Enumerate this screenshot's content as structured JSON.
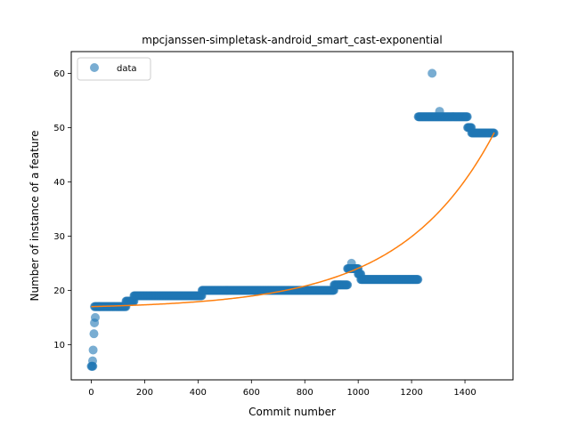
{
  "chart_data": {
    "type": "scatter",
    "title": "mpcjanssen-simpletask-android_smart_cast-exponential",
    "xlabel": "Commit number",
    "ylabel": "Number of instance of a feature",
    "xlim": [
      -75,
      1580
    ],
    "ylim": [
      3.5,
      64
    ],
    "xticks": [
      0,
      200,
      400,
      600,
      800,
      1000,
      1200,
      1400
    ],
    "yticks": [
      10,
      20,
      30,
      40,
      50,
      60
    ],
    "grid": false,
    "legend": {
      "placement": "upper-left",
      "entries": [
        "data"
      ]
    },
    "colors": {
      "data": "#1f77b4",
      "fit": "#ff7f0e"
    },
    "series": [
      {
        "name": "data",
        "kind": "scatter",
        "segments": [
          {
            "x0": 0,
            "x1": 6,
            "y": 6
          },
          {
            "x0": 12,
            "x1": 30,
            "y": 17
          },
          {
            "x0": 30,
            "x1": 130,
            "y": 17
          },
          {
            "x0": 130,
            "x1": 160,
            "y": 18
          },
          {
            "x0": 160,
            "x1": 415,
            "y": 19
          },
          {
            "x0": 415,
            "x1": 910,
            "y": 20
          },
          {
            "x0": 910,
            "x1": 960,
            "y": 21
          },
          {
            "x0": 960,
            "x1": 1000,
            "y": 24
          },
          {
            "x0": 1000,
            "x1": 1010,
            "y": 23
          },
          {
            "x0": 1010,
            "x1": 1225,
            "y": 22
          },
          {
            "x0": 1225,
            "x1": 1410,
            "y": 52
          },
          {
            "x0": 1410,
            "x1": 1425,
            "y": 50
          },
          {
            "x0": 1425,
            "x1": 1510,
            "y": 49
          }
        ],
        "points": [
          {
            "x": 5,
            "y": 7
          },
          {
            "x": 7,
            "y": 9
          },
          {
            "x": 10,
            "y": 12
          },
          {
            "x": 12,
            "y": 14
          },
          {
            "x": 15,
            "y": 15
          },
          {
            "x": 975,
            "y": 25
          },
          {
            "x": 1277,
            "y": 60
          },
          {
            "x": 1305,
            "y": 53
          }
        ]
      },
      {
        "name": "",
        "kind": "line",
        "model": "exponential",
        "params": {
          "a": 0.42,
          "b": 0.00288,
          "c": 16.58
        },
        "x_range": [
          0,
          1510
        ]
      }
    ]
  }
}
